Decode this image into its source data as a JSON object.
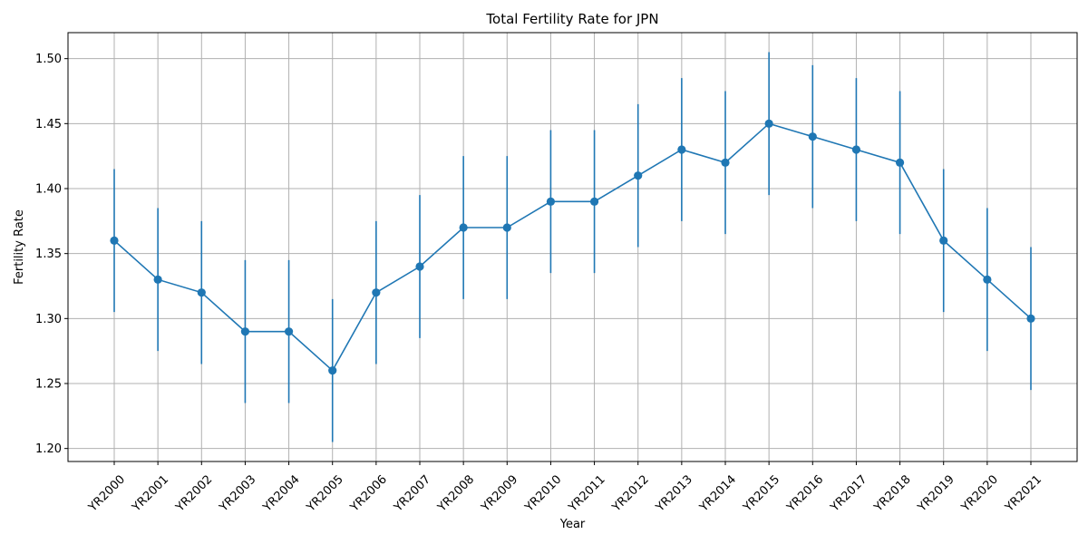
{
  "chart_data": {
    "type": "line",
    "title": "Total Fertility Rate for JPN",
    "xlabel": "Year",
    "ylabel": "Fertility Rate",
    "categories": [
      "YR2000",
      "YR2001",
      "YR2002",
      "YR2003",
      "YR2004",
      "YR2005",
      "YR2006",
      "YR2007",
      "YR2008",
      "YR2009",
      "YR2010",
      "YR2011",
      "YR2012",
      "YR2013",
      "YR2014",
      "YR2015",
      "YR2016",
      "YR2017",
      "YR2018",
      "YR2019",
      "YR2020",
      "YR2021"
    ],
    "values": [
      1.36,
      1.33,
      1.32,
      1.29,
      1.29,
      1.26,
      1.32,
      1.34,
      1.37,
      1.37,
      1.39,
      1.39,
      1.41,
      1.43,
      1.42,
      1.45,
      1.44,
      1.43,
      1.42,
      1.36,
      1.33,
      1.3
    ],
    "error": [
      0.055,
      0.055,
      0.055,
      0.055,
      0.055,
      0.055,
      0.055,
      0.055,
      0.055,
      0.055,
      0.055,
      0.055,
      0.055,
      0.055,
      0.055,
      0.055,
      0.055,
      0.055,
      0.055,
      0.055,
      0.055,
      0.055
    ],
    "ylim": [
      1.19,
      1.52
    ],
    "yticks": [
      1.2,
      1.25,
      1.3,
      1.35,
      1.4,
      1.45,
      1.5
    ],
    "ytick_labels": [
      "1.20",
      "1.25",
      "1.30",
      "1.35",
      "1.40",
      "1.45",
      "1.50"
    ],
    "grid": true,
    "legend": false,
    "colors": {
      "series": "#1f77b4",
      "grid": "#b0b0b0",
      "axis": "#000000"
    }
  }
}
